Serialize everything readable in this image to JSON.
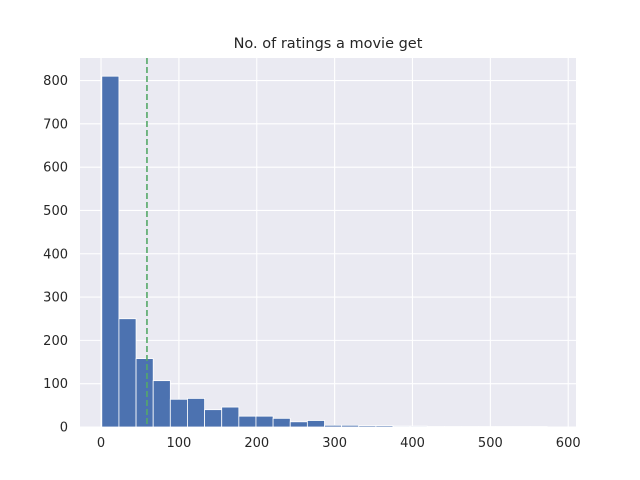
{
  "chart_data": {
    "type": "bar",
    "title": "No. of ratings a movie get",
    "xlabel": "",
    "ylabel": "",
    "xlim": [
      -27,
      610
    ],
    "ylim": [
      0,
      852
    ],
    "grid": true,
    "x_ticks": [
      0,
      100,
      200,
      300,
      400,
      500,
      600
    ],
    "y_ticks": [
      0,
      100,
      200,
      300,
      400,
      500,
      600,
      700,
      800
    ],
    "bins": {
      "start": 1,
      "width": 22,
      "counts": [
        810,
        250,
        158,
        107,
        64,
        66,
        40,
        46,
        25,
        25,
        20,
        12,
        15,
        4,
        4,
        3,
        3,
        2,
        2,
        1,
        1,
        1,
        1,
        1,
        1,
        1
      ]
    },
    "reference_line": {
      "x": 59,
      "style": "dashed",
      "color": "#55a868"
    },
    "colors": {
      "bar": "#4c72b0",
      "background": "#eaeaf2",
      "grid": "#ffffff"
    }
  }
}
